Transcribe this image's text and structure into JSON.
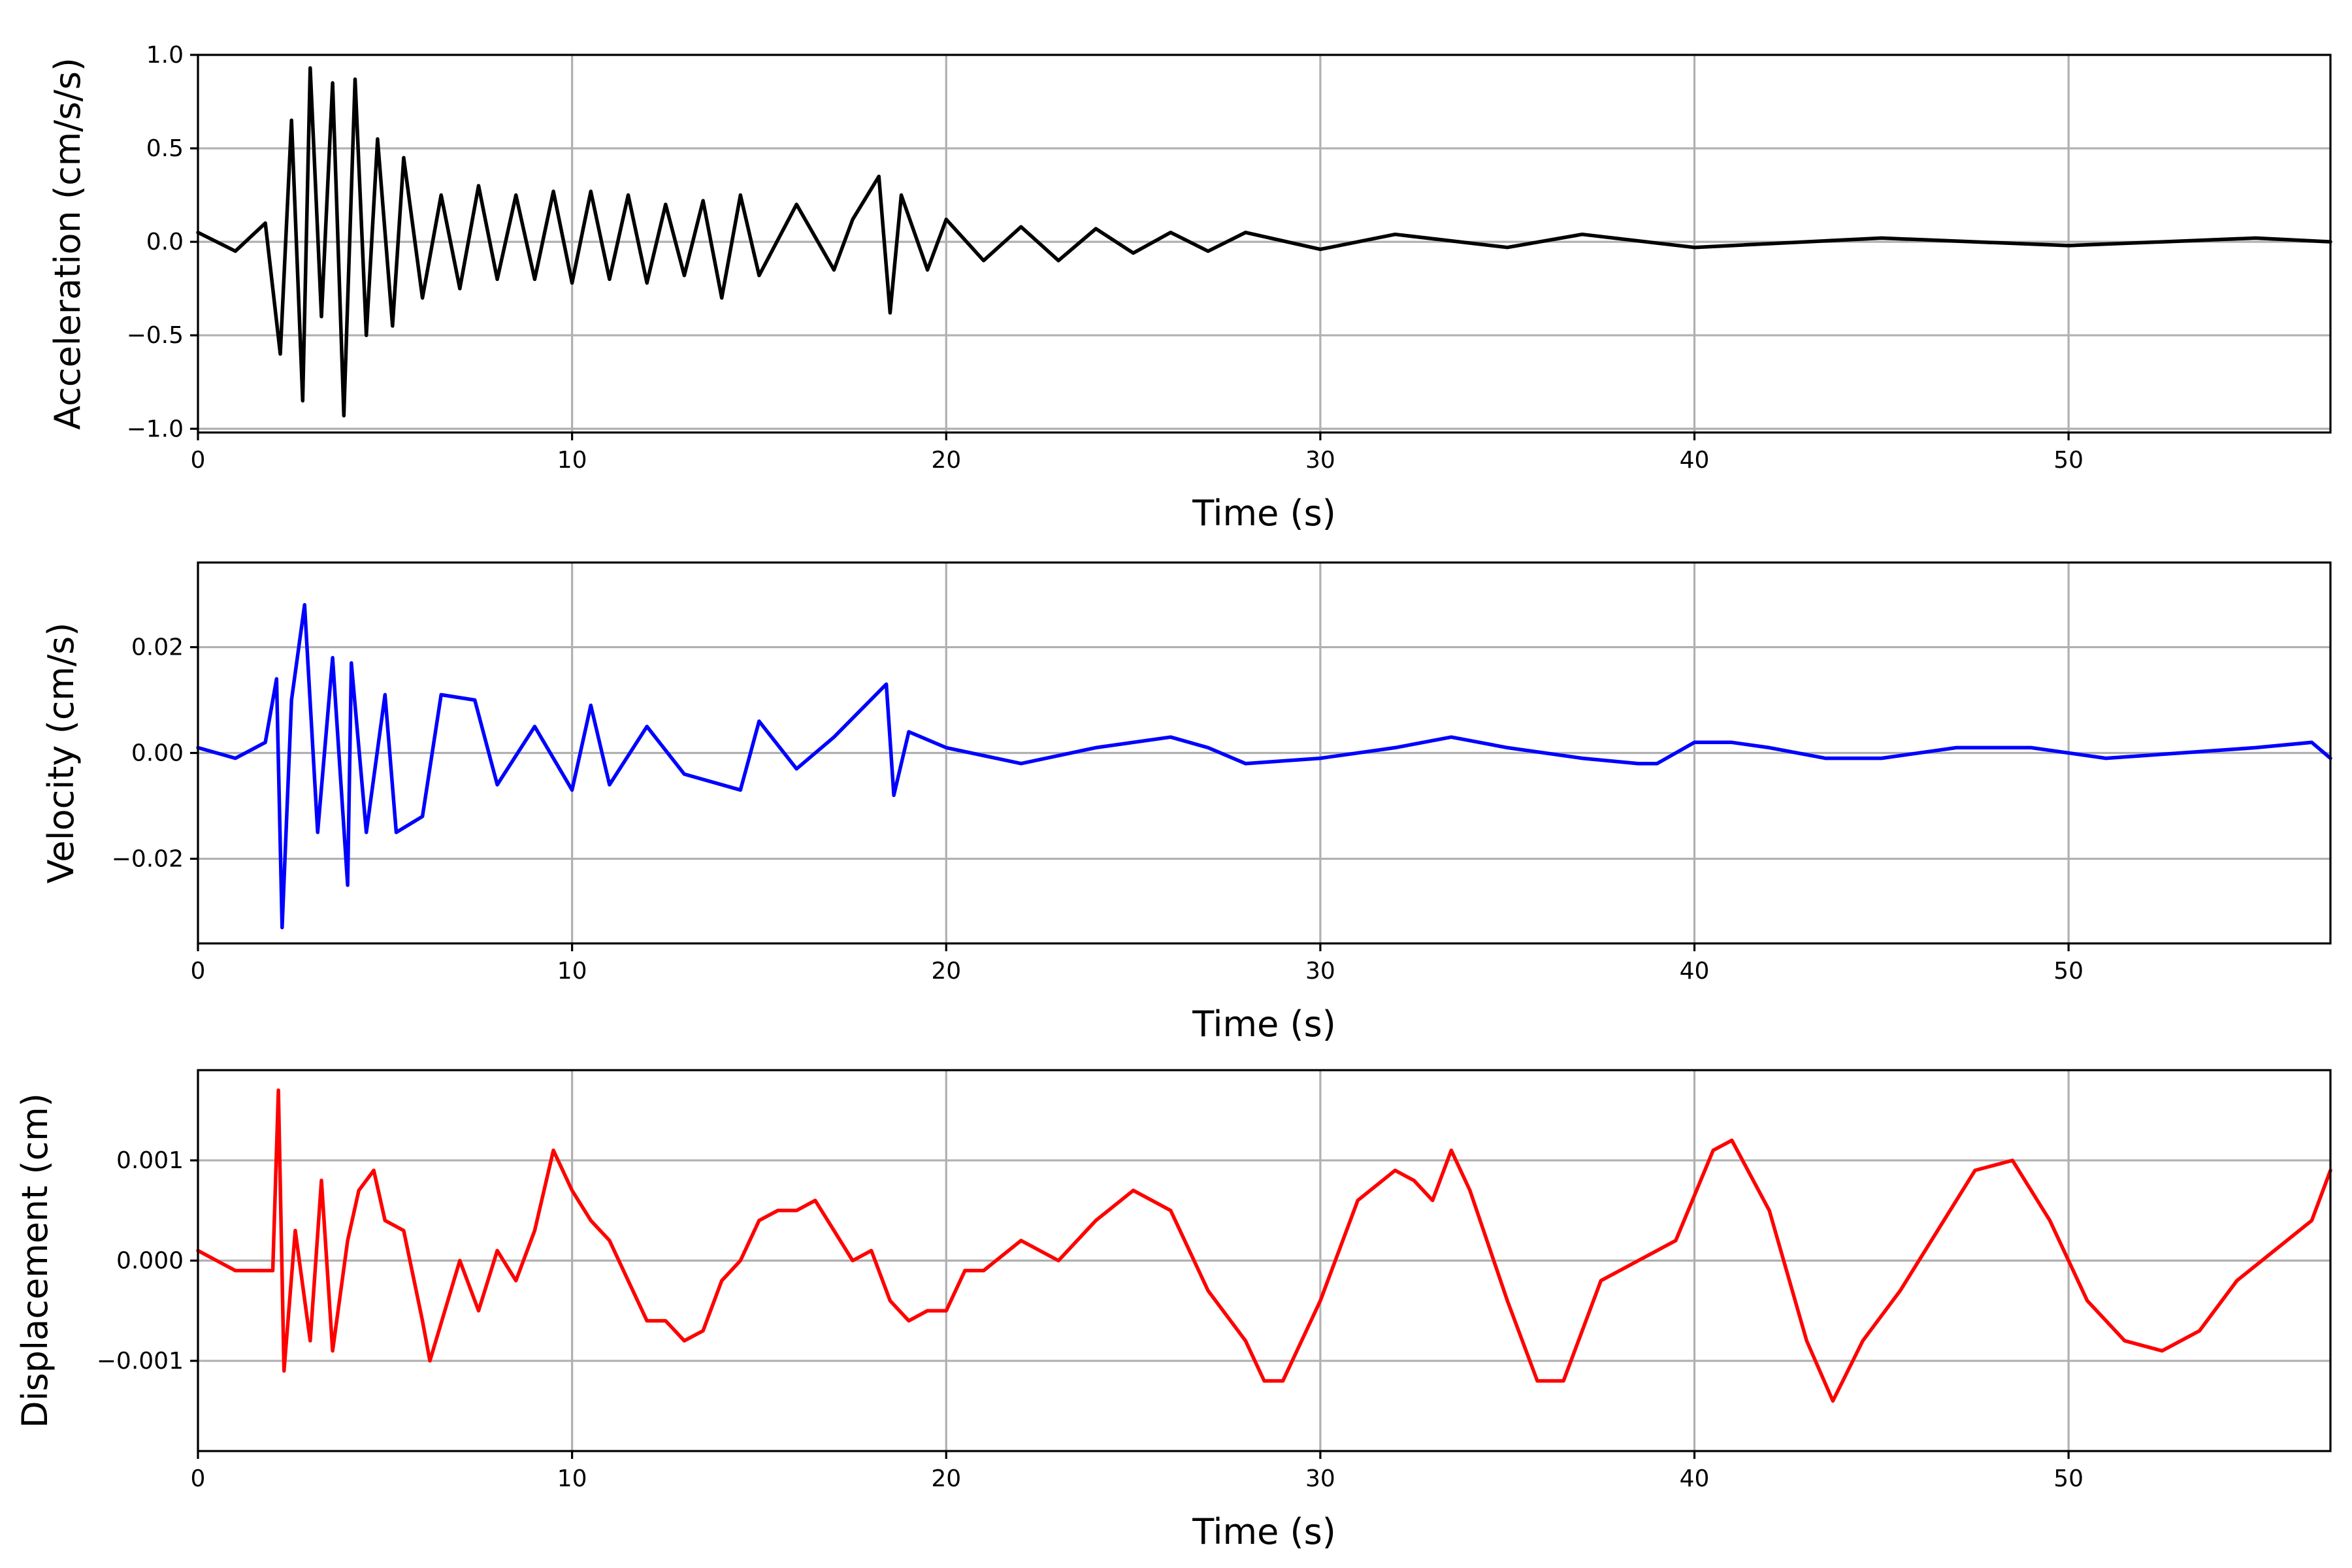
{
  "chart_data": [
    {
      "type": "line",
      "title": "",
      "xlabel": "Time (s)",
      "ylabel": "Acceleration (cm/s/s)",
      "xlim": [
        0,
        57
      ],
      "ylim": [
        -1.02,
        1.0
      ],
      "xticks": [
        0,
        10,
        20,
        30,
        40,
        50
      ],
      "xtick_labels": [
        "0",
        "10",
        "20",
        "30",
        "40",
        "50"
      ],
      "yticks": [
        -1.0,
        -0.5,
        0.0,
        0.5,
        1.0
      ],
      "ytick_labels": [
        "−1.0",
        "−0.5",
        "0.0",
        "0.5",
        "1.0"
      ],
      "grid": true,
      "color": "#000000",
      "series": [
        {
          "x": [
            0,
            1,
            1.8,
            2.2,
            2.5,
            2.8,
            3.0,
            3.3,
            3.6,
            3.9,
            4.2,
            4.5,
            4.8,
            5.2,
            5.5,
            6,
            6.5,
            7,
            7.5,
            8,
            8.5,
            9,
            9.5,
            10,
            10.5,
            11,
            11.5,
            12,
            12.5,
            13,
            13.5,
            14,
            14.5,
            15,
            16,
            17,
            17.5,
            18.2,
            18.5,
            18.8,
            19.5,
            20,
            21,
            22,
            23,
            24,
            25,
            26,
            27,
            28,
            30,
            32,
            35,
            37,
            40,
            45,
            50,
            55,
            57
          ],
          "y": [
            0.05,
            -0.05,
            0.1,
            -0.6,
            0.65,
            -0.85,
            0.93,
            -0.4,
            0.85,
            -0.93,
            0.87,
            -0.5,
            0.55,
            -0.45,
            0.45,
            -0.3,
            0.25,
            -0.25,
            0.3,
            -0.2,
            0.25,
            -0.2,
            0.27,
            -0.22,
            0.27,
            -0.2,
            0.25,
            -0.22,
            0.2,
            -0.18,
            0.22,
            -0.3,
            0.25,
            -0.18,
            0.2,
            -0.15,
            0.12,
            0.35,
            -0.38,
            0.25,
            -0.15,
            0.12,
            -0.1,
            0.08,
            -0.1,
            0.07,
            -0.06,
            0.05,
            -0.05,
            0.05,
            -0.04,
            0.04,
            -0.03,
            0.04,
            -0.03,
            0.02,
            -0.02,
            0.02,
            0.0
          ]
        }
      ]
    },
    {
      "type": "line",
      "title": "",
      "xlabel": "Time (s)",
      "ylabel": "Velocity (cm/s)",
      "xlim": [
        0,
        57
      ],
      "ylim": [
        -0.036,
        0.036
      ],
      "xticks": [
        0,
        10,
        20,
        30,
        40,
        50
      ],
      "xtick_labels": [
        "0",
        "10",
        "20",
        "30",
        "40",
        "50"
      ],
      "yticks": [
        -0.02,
        0.0,
        0.02
      ],
      "ytick_labels": [
        "−0.02",
        "0.00",
        "0.02"
      ],
      "grid": true,
      "color": "#0000ff",
      "series": [
        {
          "x": [
            0,
            1,
            1.8,
            2.1,
            2.25,
            2.5,
            2.85,
            3.2,
            3.6,
            4.0,
            4.1,
            4.5,
            5.0,
            5.3,
            6,
            6.5,
            7.4,
            8,
            9,
            10,
            10.5,
            11,
            12,
            13,
            14.5,
            15,
            16,
            17,
            18.4,
            18.6,
            19,
            20,
            22,
            24,
            26,
            27,
            28,
            30,
            32,
            33.5,
            35,
            37,
            38.5,
            39,
            40,
            41,
            42,
            43.5,
            45,
            47,
            49,
            51,
            53,
            55,
            56.5,
            57
          ],
          "y": [
            0.001,
            -0.001,
            0.002,
            0.014,
            -0.033,
            0.01,
            0.028,
            -0.015,
            0.018,
            -0.025,
            0.017,
            -0.015,
            0.011,
            -0.015,
            -0.012,
            0.011,
            0.01,
            -0.006,
            0.005,
            -0.007,
            0.009,
            -0.006,
            0.005,
            -0.004,
            -0.007,
            0.006,
            -0.003,
            0.003,
            0.013,
            -0.008,
            0.004,
            0.001,
            -0.002,
            0.001,
            0.003,
            0.001,
            -0.002,
            -0.001,
            0.001,
            0.003,
            0.001,
            -0.001,
            -0.002,
            -0.002,
            0.002,
            0.002,
            0.001,
            -0.001,
            -0.001,
            0.001,
            0.001,
            -0.001,
            0.0,
            0.001,
            0.002,
            -0.001
          ]
        }
      ]
    },
    {
      "type": "line",
      "title": "",
      "xlabel": "Time (s)",
      "ylabel": "Displacement (cm)",
      "xlim": [
        0,
        57
      ],
      "ylim": [
        -0.0019,
        0.0019
      ],
      "xticks": [
        0,
        10,
        20,
        30,
        40,
        50
      ],
      "xtick_labels": [
        "0",
        "10",
        "20",
        "30",
        "40",
        "50"
      ],
      "yticks": [
        -0.001,
        0.0,
        0.001
      ],
      "ytick_labels": [
        "−0.001",
        "0.000",
        "0.001"
      ],
      "grid": true,
      "color": "#ff0000",
      "series": [
        {
          "x": [
            0,
            0.5,
            1,
            1.5,
            2.0,
            2.15,
            2.3,
            2.6,
            3.0,
            3.3,
            3.6,
            4.0,
            4.3,
            4.7,
            5.0,
            5.5,
            6.0,
            6.2,
            6.6,
            7.0,
            7.5,
            8.0,
            8.5,
            9.0,
            9.5,
            10.0,
            10.5,
            11.0,
            11.5,
            12.0,
            12.5,
            13.0,
            13.5,
            14.0,
            14.5,
            15.0,
            15.5,
            16.0,
            16.5,
            17.0,
            17.5,
            18.0,
            18.5,
            19.0,
            19.5,
            20.0,
            20.5,
            21.0,
            22.0,
            23.0,
            24.0,
            25.0,
            26.0,
            27.0,
            28.0,
            28.5,
            29.0,
            30.0,
            31.0,
            32.0,
            32.5,
            33.0,
            33.5,
            34.0,
            35.0,
            35.8,
            36.5,
            37.5,
            38.5,
            39.5,
            40.5,
            41.0,
            42.0,
            43.0,
            43.7,
            44.5,
            45.5,
            46.5,
            47.5,
            48.5,
            49.5,
            50.5,
            51.5,
            52.5,
            53.5,
            54.5,
            55.5,
            56.5,
            57.0
          ],
          "y": [
            0.0001,
            0.0,
            -0.0001,
            -0.0001,
            -0.0001,
            0.0017,
            -0.0011,
            0.0003,
            -0.0008,
            0.0008,
            -0.0009,
            0.0002,
            0.0007,
            0.0009,
            0.0004,
            0.0003,
            -0.0006,
            -0.001,
            -0.0005,
            0.0,
            -0.0005,
            0.0001,
            -0.0002,
            0.0003,
            0.0011,
            0.0007,
            0.0004,
            0.0002,
            -0.0002,
            -0.0006,
            -0.0006,
            -0.0008,
            -0.0007,
            -0.0002,
            0.0,
            0.0004,
            0.0005,
            0.0005,
            0.0006,
            0.0003,
            0.0,
            0.0001,
            -0.0004,
            -0.0006,
            -0.0005,
            -0.0005,
            -0.0001,
            -0.0001,
            0.0002,
            0.0,
            0.0004,
            0.0007,
            0.0005,
            -0.0003,
            -0.0008,
            -0.0012,
            -0.0012,
            -0.0004,
            0.0006,
            0.0009,
            0.0008,
            0.0006,
            0.0011,
            0.0007,
            -0.0004,
            -0.0012,
            -0.0012,
            -0.0002,
            0.0,
            0.0002,
            0.0011,
            0.0012,
            0.0005,
            -0.0008,
            -0.0014,
            -0.0008,
            -0.0003,
            0.0003,
            0.0009,
            0.001,
            0.0004,
            -0.0004,
            -0.0008,
            -0.0009,
            -0.0007,
            -0.0002,
            0.0001,
            0.0004,
            0.0009
          ]
        }
      ]
    }
  ]
}
